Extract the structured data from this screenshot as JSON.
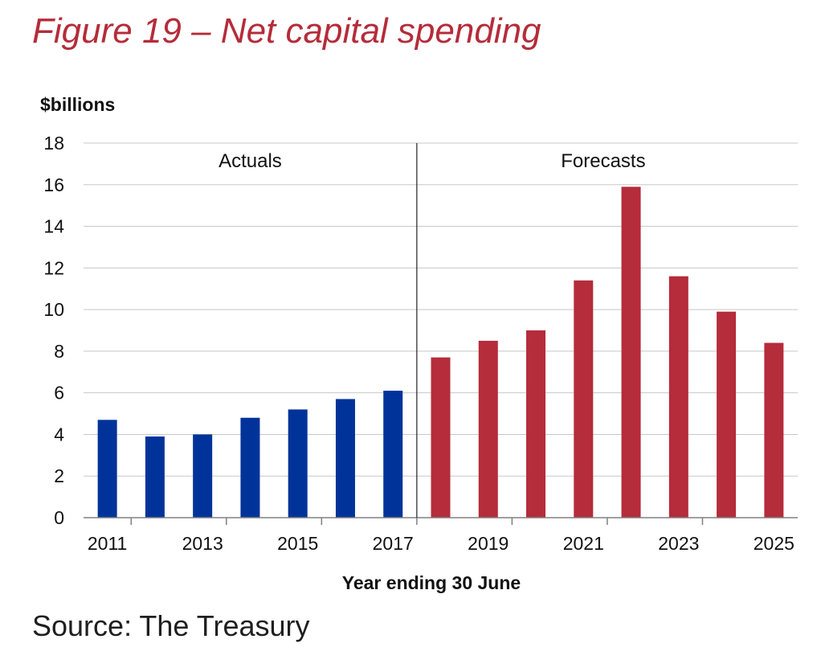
{
  "figure_title": "Figure 19 – Net capital spending",
  "source": "Source: The Treasury",
  "colors": {
    "title": "#b52c3a",
    "actual": "#00339a",
    "forecast": "#b52c3a",
    "grid": "#c8c8c8"
  },
  "chart_data": {
    "type": "bar",
    "title": "Figure 19 – Net capital spending",
    "ylabel": "$billions",
    "xlabel": "Year ending 30 June",
    "ylim": [
      0,
      18
    ],
    "yticks": [
      0,
      2,
      4,
      6,
      8,
      10,
      12,
      14,
      16,
      18
    ],
    "categories": [
      "2011",
      "2012",
      "2013",
      "2014",
      "2015",
      "2016",
      "2017",
      "2018",
      "2019",
      "2020",
      "2021",
      "2022",
      "2023",
      "2024",
      "2025"
    ],
    "xtick_labels": [
      "2011",
      "2013",
      "2015",
      "2017",
      "2019",
      "2021",
      "2023",
      "2025"
    ],
    "series": [
      {
        "name": "Actuals",
        "color": "#00339a",
        "values": [
          4.7,
          3.9,
          4.0,
          4.8,
          5.2,
          5.7,
          6.1,
          null,
          null,
          null,
          null,
          null,
          null,
          null,
          null
        ]
      },
      {
        "name": "Forecasts",
        "color": "#b52c3a",
        "values": [
          null,
          null,
          null,
          null,
          null,
          null,
          null,
          7.7,
          8.5,
          9.0,
          11.4,
          15.9,
          11.6,
          9.9,
          8.4
        ]
      }
    ],
    "annotations": [
      "Actuals",
      "Forecasts"
    ]
  }
}
